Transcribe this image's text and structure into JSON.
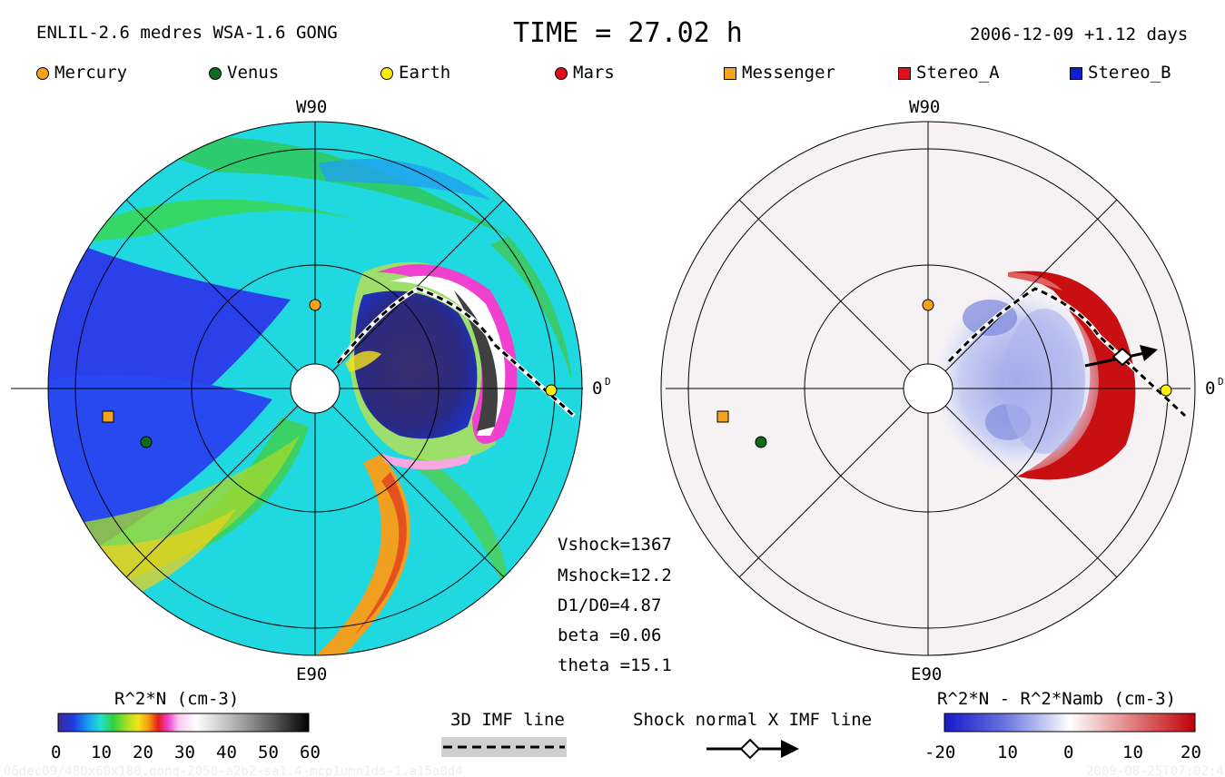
{
  "header": {
    "model": "ENLIL-2.6 medres WSA-1.6 GONG",
    "time": "TIME = 27.02 h",
    "date": "2006-12-09 +1.12 days"
  },
  "legend": [
    {
      "label": "Mercury",
      "shape": "circle",
      "color": "#f7a21b"
    },
    {
      "label": "Venus",
      "shape": "circle",
      "color": "#0f6b1e"
    },
    {
      "label": "Earth",
      "shape": "circle",
      "color": "#fff000"
    },
    {
      "label": "Mars",
      "shape": "circle",
      "color": "#e0101a"
    },
    {
      "label": "Messenger",
      "shape": "square",
      "color": "#f7a21b"
    },
    {
      "label": "Stereo_A",
      "shape": "square",
      "color": "#e0101a"
    },
    {
      "label": "Stereo_B",
      "shape": "square",
      "color": "#1020d0"
    }
  ],
  "plots": {
    "left": {
      "top_label": "W90",
      "bottom_label": "E90",
      "right_label": "0"
    },
    "right": {
      "top_label": "W90",
      "bottom_label": "E90",
      "right_label": "0"
    }
  },
  "shock_params": [
    "Vshock=1367",
    "Mshock=12.2",
    "D1/D0=4.87",
    "beta  =0.06",
    "theta =15.1"
  ],
  "colorbar_left": {
    "title": "R^2*N (cm-3)",
    "ticks": [
      "0",
      "10",
      "20",
      "30",
      "40",
      "50",
      "60"
    ]
  },
  "colorbar_right": {
    "title": "R^2*N - R^2*Namb (cm-3)",
    "ticks": [
      "-20",
      "10",
      "0",
      "10",
      "20"
    ]
  },
  "key_imf": {
    "label": "3D IMF line"
  },
  "key_shock": {
    "label": "Shock normal X IMF line"
  },
  "footer": {
    "left": "06dec09/480x60x180.gong-2050-a2b2-sa1.4-mcp1umn1ds-1.a15a0d4",
    "right": "2009-08-25T07:02:4"
  }
}
